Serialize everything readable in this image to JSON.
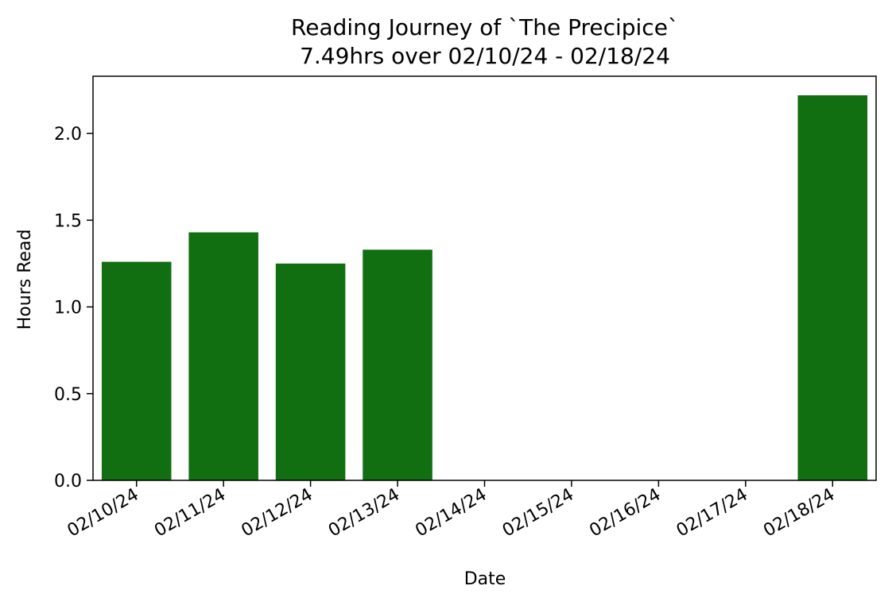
{
  "chart_data": {
    "type": "bar",
    "title": "Reading Journey of `The Precipice`",
    "subtitle": "7.49hrs over 02/10/24 - 02/18/24",
    "xlabel": "Date",
    "ylabel": "Hours Read",
    "categories": [
      "02/10/24",
      "02/11/24",
      "02/12/24",
      "02/13/24",
      "02/14/24",
      "02/15/24",
      "02/16/24",
      "02/17/24",
      "02/18/24"
    ],
    "values": [
      1.26,
      1.43,
      1.25,
      1.33,
      0,
      0,
      0,
      0,
      2.22
    ],
    "yticks": [
      "0.0",
      "0.5",
      "1.0",
      "1.5",
      "2.0"
    ],
    "ylim": [
      0,
      2.33
    ],
    "bar_color": "#116f11",
    "grid": false,
    "legend": "none"
  }
}
